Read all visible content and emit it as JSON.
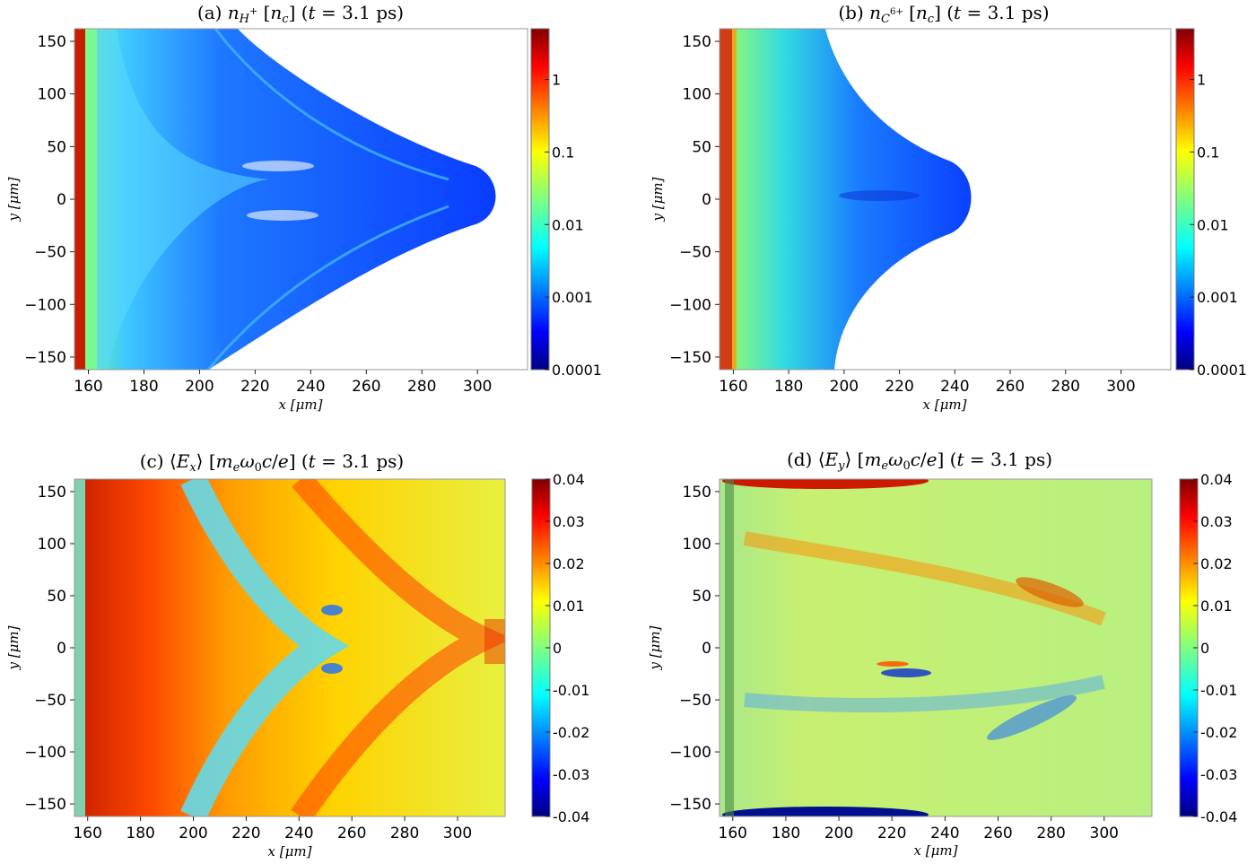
{
  "chart_data": [
    {
      "type": "heatmap",
      "panel": "a",
      "title": "(a) n_{H+} [n_c] (t = 3.1 ps)",
      "xlabel": "x [μm]",
      "ylabel": "y [μm]",
      "xlim": [
        155,
        318
      ],
      "ylim": [
        -162,
        162
      ],
      "xticks": [
        "160",
        "180",
        "200",
        "220",
        "240",
        "260",
        "280",
        "300"
      ],
      "yticks": [
        "150",
        "100",
        "50",
        "0",
        "−50",
        "−100",
        "−150"
      ],
      "colorbar": {
        "scale": "log",
        "range": [
          0.0001,
          5
        ],
        "ticks": [
          "1",
          "0.1",
          "0.01",
          "0.001",
          "0.0001"
        ]
      },
      "shape": "arrowhead-density-front-to-x≈308"
    },
    {
      "type": "heatmap",
      "panel": "b",
      "title": "(b) n_{C6+} [n_c] (t = 3.1 ps)",
      "xlabel": "x [μm]",
      "ylabel": "y [μm]",
      "xlim": [
        155,
        318
      ],
      "ylim": [
        -162,
        162
      ],
      "xticks": [
        "160",
        "180",
        "200",
        "220",
        "240",
        "260",
        "280",
        "300"
      ],
      "yticks": [
        "150",
        "100",
        "50",
        "0",
        "−50",
        "−100",
        "−150"
      ],
      "colorbar": {
        "scale": "log",
        "range": [
          0.0001,
          5
        ],
        "ticks": [
          "1",
          "0.1",
          "0.01",
          "0.001",
          "0.0001"
        ]
      },
      "shape": "arrowhead-density-front-to-x≈247"
    },
    {
      "type": "heatmap",
      "panel": "c",
      "title": "(c) ⟨E_x⟩ [m_e ω_0 c/e] (t = 3.1 ps)",
      "xlabel": "x [μm]",
      "ylabel": "y [μm]",
      "xlim": [
        155,
        318
      ],
      "ylim": [
        -162,
        162
      ],
      "xticks": [
        "160",
        "180",
        "200",
        "220",
        "240",
        "260",
        "280",
        "300"
      ],
      "yticks": [
        "150",
        "100",
        "50",
        "0",
        "−50",
        "−100",
        "−150"
      ],
      "colorbar": {
        "scale": "linear",
        "range": [
          -0.04,
          0.04
        ],
        "ticks": [
          "0.04",
          "0.03",
          "0.02",
          "0.01",
          "0",
          "-0.01",
          "-0.02",
          "-0.03",
          "-0.04"
        ]
      }
    },
    {
      "type": "heatmap",
      "panel": "d",
      "title": "(d) ⟨E_y⟩ [m_e ω_0 c/e] (t = 3.1 ps)",
      "xlabel": "x [μm]",
      "ylabel": "y [μm]",
      "xlim": [
        155,
        318
      ],
      "ylim": [
        -162,
        162
      ],
      "xticks": [
        "160",
        "180",
        "200",
        "220",
        "240",
        "260",
        "280",
        "300"
      ],
      "yticks": [
        "150",
        "100",
        "50",
        "0",
        "−50",
        "−100",
        "−150"
      ],
      "colorbar": {
        "scale": "linear",
        "range": [
          -0.04,
          0.04
        ],
        "ticks": [
          "0.04",
          "0.03",
          "0.02",
          "0.01",
          "0",
          "-0.01",
          "-0.02",
          "-0.03",
          "-0.04"
        ]
      }
    }
  ],
  "colormap": [
    "#00007f",
    "#0000ff",
    "#007fff",
    "#00ffff",
    "#7fff7f",
    "#ffff00",
    "#ff7f00",
    "#ff0000",
    "#7f0000"
  ]
}
